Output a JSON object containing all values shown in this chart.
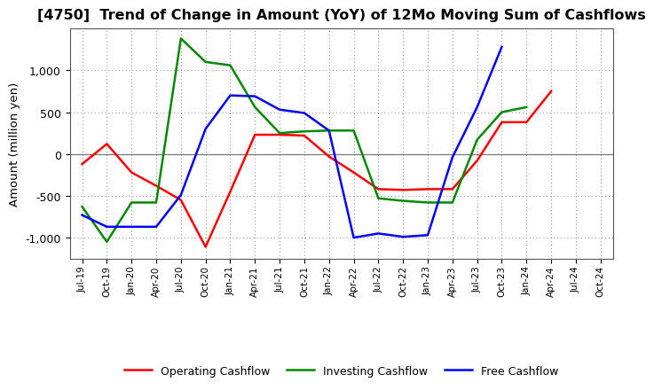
{
  "title": "[4750]  Trend of Change in Amount (YoY) of 12Mo Moving Sum of Cashflows",
  "ylabel": "Amount (million yen)",
  "x_labels": [
    "Jul-19",
    "Oct-19",
    "Jan-20",
    "Apr-20",
    "Jul-20",
    "Oct-20",
    "Jan-21",
    "Apr-21",
    "Jul-21",
    "Oct-21",
    "Jan-22",
    "Apr-22",
    "Jul-22",
    "Oct-22",
    "Jan-23",
    "Apr-23",
    "Jul-23",
    "Oct-23",
    "Jan-24",
    "Apr-24",
    "Jul-24",
    "Oct-24"
  ],
  "operating": [
    -120,
    120,
    -220,
    -380,
    -550,
    -1110,
    -450,
    230,
    230,
    220,
    -30,
    -220,
    -420,
    -430,
    -420,
    -420,
    -80,
    380,
    380,
    750,
    null,
    null
  ],
  "investing": [
    -630,
    -1050,
    -580,
    -580,
    1380,
    1100,
    1060,
    560,
    250,
    270,
    280,
    280,
    -530,
    -560,
    -580,
    -580,
    170,
    500,
    560,
    null,
    null,
    null
  ],
  "free": [
    -730,
    -870,
    -870,
    -870,
    -490,
    300,
    700,
    690,
    530,
    490,
    280,
    -1000,
    -950,
    -990,
    -970,
    -40,
    560,
    1280,
    null,
    null,
    null,
    null
  ],
  "operating_color": "#ff0000",
  "investing_color": "#008800",
  "free_color": "#0000ff",
  "ylim": [
    -1250,
    1500
  ],
  "yticks": [
    -1000,
    -500,
    0,
    500,
    1000
  ],
  "background_color": "#ffffff",
  "grid_color": "#888888"
}
